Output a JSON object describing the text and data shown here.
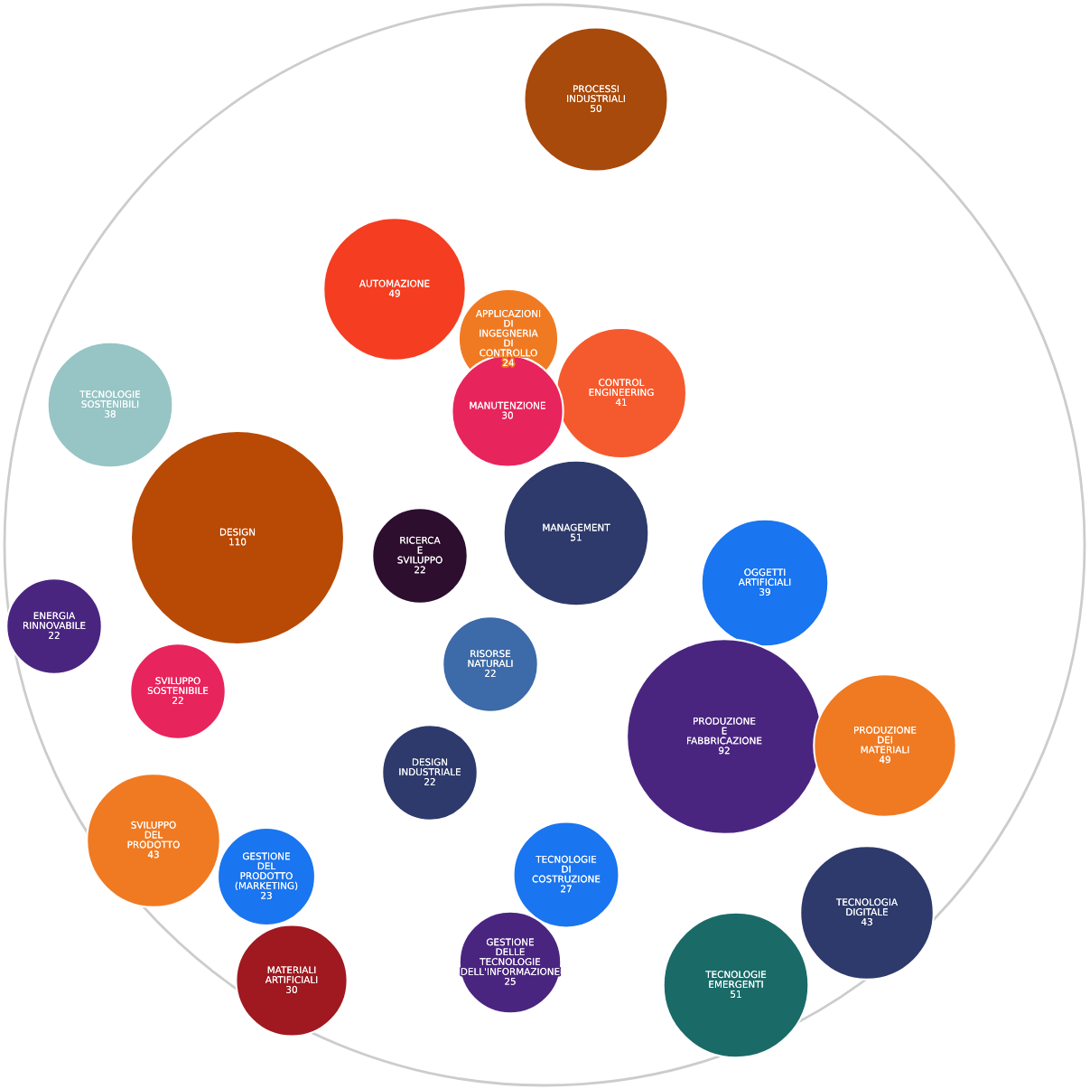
{
  "chart_data": {
    "type": "other",
    "categories": [
      "PROCESSI INDUSTRIALI",
      "AUTOMAZIONE",
      "APPLICAZIONI DI INGEGNERIA DI CONTROLLO",
      "CONTROL ENGINEERING",
      "TECNOLOGIE SOSTENIBILI",
      "MANUTENZIONE",
      "DESIGN",
      "RICERCA E SVILUPPO",
      "MANAGEMENT",
      "OGGETTI ARTIFICIALI",
      "ENERGIA RINNOVABILE",
      "RISORSE NATURALI",
      "SVILUPPO SOSTENIBILE",
      "PRODUZIONE E FABBRICAZIONE",
      "PRODUZIONE DEI MATERIALI",
      "DESIGN INDUSTRIALE",
      "SVILUPPO DEL PRODOTTO",
      "GESTIONE DEL PRODOTTO (MARKETING)",
      "TECNOLOGIE DI COSTRUZIONE",
      "TECNOLOGIA DIGITALE",
      "GESTIONE DELLE TECNOLOGIE DELL'INFORMAZIONE",
      "MATERIALI ARTIFICIALI",
      "TECNOLOGIE EMERGENTI"
    ],
    "values": [
      50,
      49,
      24,
      41,
      38,
      30,
      110,
      22,
      51,
      39,
      22,
      22,
      22,
      92,
      49,
      22,
      43,
      23,
      27,
      43,
      25,
      30,
      51
    ],
    "colors": [
      "#a84a0c",
      "#f53d21",
      "#f07a22",
      "#f55a2e",
      "#97c4c4",
      "#e8245c",
      "#b84a05",
      "#2d0e2e",
      "#2e3a6b",
      "#1a75f0",
      "#4a2580",
      "#3d6aa8",
      "#e8245c",
      "#4a2580",
      "#f07a22",
      "#2e3a6b",
      "#f07a22",
      "#1a75f0",
      "#1a75f0",
      "#2e3a6b",
      "#4a2580",
      "#a01820",
      "#1a6b68"
    ],
    "data_labels": true
  }
}
